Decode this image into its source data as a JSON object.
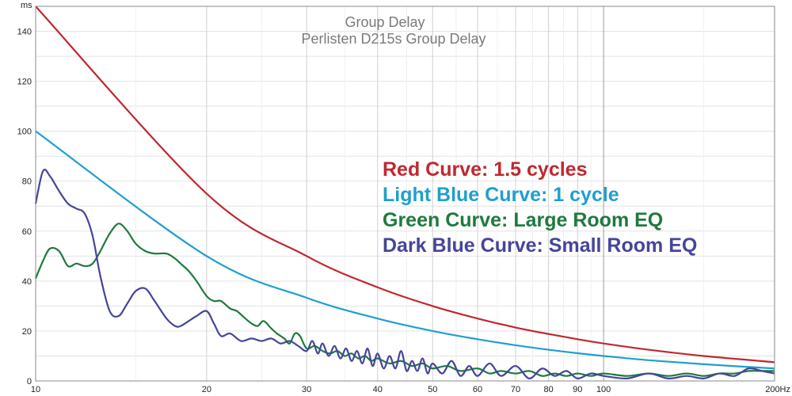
{
  "chart_data": {
    "type": "line",
    "title": "Group Delay",
    "subtitle": "Perlisten D215s Group Delay",
    "ylabel": "ms",
    "xunit": "Hz",
    "xscale": "log",
    "xlim": [
      10,
      200
    ],
    "ylim": [
      0,
      150
    ],
    "grid": true,
    "legend_placement": "right",
    "xticks": [
      10,
      20,
      30,
      40,
      50,
      60,
      70,
      80,
      90,
      100,
      200
    ],
    "xtick_labels": [
      "10",
      "20",
      "30",
      "40",
      "50",
      "60",
      "70",
      "80",
      "90",
      "100",
      "200Hz"
    ],
    "yticks": [
      0,
      20,
      40,
      60,
      80,
      100,
      120,
      140
    ],
    "ytick_labels": [
      "0",
      "20",
      "40",
      "60",
      "80",
      "100",
      "120",
      "140"
    ],
    "legend_lines": [
      {
        "text": "Red Curve: 1.5 cycles",
        "color": "#c0282f"
      },
      {
        "text": "Light Blue Curve: 1 cycle",
        "color": "#1f9fcf"
      },
      {
        "text": "Green Curve: Large Room EQ",
        "color": "#1e7a3e"
      },
      {
        "text": "Dark Blue Curve: Small Room EQ",
        "color": "#45459a"
      }
    ],
    "series": [
      {
        "color": "#c0282f",
        "x": [
          10,
          20,
          30,
          40,
          50,
          60,
          70,
          80,
          90,
          100,
          120,
          150,
          200
        ],
        "y": [
          150,
          75,
          50,
          37.5,
          30,
          25,
          21.4,
          18.8,
          16.7,
          15,
          12.5,
          10,
          7.5
        ]
      },
      {
        "color": "#1f9fcf",
        "x": [
          10,
          20,
          30,
          40,
          50,
          60,
          70,
          80,
          90,
          100,
          120,
          150,
          200
        ],
        "y": [
          100,
          50,
          33.3,
          25,
          20,
          16.7,
          14.3,
          12.5,
          11.1,
          10,
          8.3,
          6.7,
          5
        ]
      },
      {
        "color": "#1e7a3e",
        "x": [
          10,
          10.3,
          10.6,
          11,
          11.4,
          11.8,
          12.2,
          12.6,
          13,
          13.5,
          14,
          14.5,
          15,
          15.6,
          16.2,
          17,
          17.6,
          18,
          18.6,
          19.2,
          20,
          20.6,
          21.2,
          22,
          22.6,
          23.4,
          24,
          24.6,
          25.2,
          26,
          26.6,
          27.4,
          28,
          28.6,
          29.2,
          30,
          31,
          32,
          33,
          34,
          35,
          36,
          37,
          38,
          39,
          40,
          42,
          44,
          46,
          48,
          50,
          53,
          56,
          60,
          63,
          66,
          70,
          74,
          78,
          82,
          86,
          90,
          95,
          100,
          110,
          120,
          130,
          140,
          150,
          160,
          170,
          180,
          190,
          200
        ],
        "y": [
          41,
          48,
          53,
          52,
          46,
          47,
          46,
          47,
          52,
          59,
          63,
          60,
          55,
          52,
          51,
          51,
          49,
          47,
          44,
          40,
          34,
          32,
          32,
          29,
          28,
          25,
          23,
          22,
          24,
          21,
          19,
          17,
          15,
          19,
          18,
          13,
          14,
          12,
          11,
          12,
          10,
          11,
          9,
          10,
          8,
          9,
          7,
          8,
          6,
          7,
          5,
          6,
          4,
          5,
          3,
          4,
          3,
          4,
          2,
          3,
          2,
          3,
          2,
          3,
          2,
          3,
          2,
          3,
          2,
          3,
          3,
          4,
          4,
          4
        ]
      },
      {
        "color": "#45459a",
        "x": [
          10,
          10.3,
          10.6,
          11,
          11.4,
          11.8,
          12.2,
          12.6,
          13,
          13.5,
          14,
          14.5,
          15,
          15.6,
          16.2,
          17,
          17.6,
          18,
          18.6,
          19.2,
          20,
          20.6,
          21.2,
          22,
          23,
          24,
          25,
          26,
          27,
          28,
          29,
          30,
          30.7,
          31.4,
          32,
          32.8,
          33.6,
          34.4,
          35.2,
          36,
          36.8,
          37.6,
          38.4,
          39.2,
          40,
          41,
          42,
          43,
          44,
          45,
          46,
          47,
          48,
          49,
          50,
          52,
          54,
          56,
          58,
          60,
          63,
          66,
          70,
          74,
          78,
          82,
          86,
          90,
          95,
          100,
          110,
          120,
          130,
          140,
          150,
          160,
          170,
          180,
          190,
          200
        ],
        "y": [
          71,
          84,
          82,
          76,
          71,
          69,
          67,
          58,
          42,
          28,
          26,
          31,
          36,
          37,
          32,
          25,
          22,
          22,
          24,
          26,
          28,
          23,
          18,
          19,
          16,
          17,
          16,
          17,
          15,
          16,
          14,
          12,
          16,
          11,
          15,
          10,
          14,
          9,
          13,
          8,
          12,
          7,
          13,
          6,
          11,
          5,
          10,
          5,
          12,
          4,
          8,
          4,
          9,
          3,
          7,
          3,
          8,
          2,
          6,
          2,
          7,
          2,
          6,
          1,
          5,
          2,
          4,
          1,
          3,
          2,
          1,
          3,
          1,
          2,
          1,
          3,
          2,
          5,
          4,
          3
        ]
      }
    ]
  }
}
